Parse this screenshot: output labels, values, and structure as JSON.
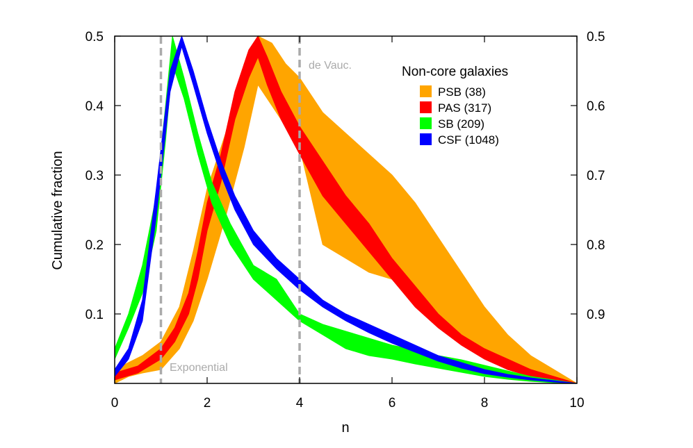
{
  "chart_data": {
    "type": "area",
    "title": "",
    "xlabel": "n",
    "ylabel": "Cumulative fraction",
    "xlim": [
      0,
      10
    ],
    "ylim": [
      0,
      0.5
    ],
    "x_ticks": [
      0,
      2,
      4,
      6,
      8,
      10
    ],
    "y_ticks": [
      0.1,
      0.2,
      0.3,
      0.4,
      0.5
    ],
    "y_tick_labels": [
      "0.1",
      "0.2",
      "0.3",
      "0.4",
      "0.5"
    ],
    "right_axis": {
      "ticks": [
        0.1,
        0.2,
        0.3,
        0.4,
        0.5
      ],
      "labels": [
        "0.9",
        "0.8",
        "0.7",
        "0.6",
        "0.5"
      ]
    },
    "grid": false,
    "legend": {
      "title": "Non-core galaxies",
      "position": "top-right"
    },
    "reference_lines": [
      {
        "x": 1,
        "label": "Exponential",
        "color": "#aaaaaa"
      },
      {
        "x": 4,
        "label": "de Vauc.",
        "color": "#aaaaaa"
      }
    ],
    "series": [
      {
        "name": "PSB (38)",
        "color": "#ffa500",
        "x": [
          0,
          0.3,
          0.6,
          1.0,
          1.4,
          1.7,
          2.0,
          2.4,
          2.8,
          3.1,
          3.4,
          3.7,
          4.0,
          4.5,
          5.0,
          5.5,
          6.0,
          6.5,
          7.0,
          7.5,
          8.0,
          8.5,
          9.0,
          9.5,
          10
        ],
        "upper": [
          0.02,
          0.03,
          0.04,
          0.06,
          0.11,
          0.19,
          0.28,
          0.36,
          0.46,
          0.5,
          0.49,
          0.46,
          0.44,
          0.39,
          0.36,
          0.33,
          0.3,
          0.26,
          0.21,
          0.16,
          0.11,
          0.07,
          0.04,
          0.02,
          0
        ],
        "lower": [
          0,
          0.01,
          0.015,
          0.02,
          0.05,
          0.09,
          0.15,
          0.24,
          0.34,
          0.43,
          0.4,
          0.37,
          0.34,
          0.2,
          0.18,
          0.16,
          0.15,
          0.12,
          0.09,
          0.06,
          0.04,
          0.02,
          0.01,
          0.005,
          0
        ]
      },
      {
        "name": "PAS (317)",
        "color": "#ff0000",
        "x": [
          0,
          0.5,
          1.0,
          1.3,
          1.6,
          1.8,
          2.0,
          2.3,
          2.6,
          2.9,
          3.1,
          3.3,
          3.6,
          4.0,
          4.5,
          5.0,
          5.5,
          6.0,
          6.5,
          7.0,
          7.5,
          8.0,
          8.5,
          9.0,
          9.5,
          10
        ],
        "upper": [
          0.015,
          0.025,
          0.05,
          0.08,
          0.13,
          0.19,
          0.26,
          0.33,
          0.42,
          0.48,
          0.5,
          0.47,
          0.42,
          0.37,
          0.32,
          0.27,
          0.23,
          0.18,
          0.14,
          0.1,
          0.07,
          0.05,
          0.035,
          0.02,
          0.01,
          0
        ],
        "lower": [
          0.005,
          0.015,
          0.035,
          0.06,
          0.1,
          0.15,
          0.22,
          0.29,
          0.38,
          0.44,
          0.47,
          0.43,
          0.38,
          0.33,
          0.27,
          0.23,
          0.19,
          0.15,
          0.11,
          0.08,
          0.055,
          0.035,
          0.02,
          0.01,
          0.004,
          0
        ]
      },
      {
        "name": "SB (209)",
        "color": "#00ff00",
        "x": [
          0,
          0.3,
          0.6,
          0.9,
          1.1,
          1.25,
          1.5,
          1.8,
          2.1,
          2.5,
          3.0,
          3.5,
          4.0,
          4.5,
          5.0,
          5.5,
          6.0,
          6.5,
          7.0,
          7.5,
          8.0,
          8.5,
          9.0,
          9.5,
          10
        ],
        "upper": [
          0.05,
          0.1,
          0.17,
          0.27,
          0.4,
          0.5,
          0.44,
          0.36,
          0.29,
          0.23,
          0.17,
          0.15,
          0.1,
          0.085,
          0.075,
          0.065,
          0.055,
          0.048,
          0.04,
          0.034,
          0.026,
          0.018,
          0.01,
          0.005,
          0
        ],
        "lower": [
          0.035,
          0.08,
          0.13,
          0.22,
          0.35,
          0.46,
          0.41,
          0.33,
          0.26,
          0.2,
          0.15,
          0.12,
          0.09,
          0.07,
          0.05,
          0.04,
          0.035,
          0.028,
          0.022,
          0.016,
          0.01,
          0.006,
          0.003,
          0.001,
          0
        ]
      },
      {
        "name": "CSF (1048)",
        "color": "#0000ff",
        "x": [
          0,
          0.3,
          0.6,
          0.9,
          1.2,
          1.45,
          1.7,
          2.0,
          2.3,
          2.6,
          3.0,
          3.5,
          4.0,
          4.5,
          5.0,
          5.5,
          6.0,
          6.5,
          7.0,
          7.5,
          8.0,
          8.5,
          9.0,
          9.5,
          10
        ],
        "upper": [
          0.02,
          0.05,
          0.12,
          0.28,
          0.45,
          0.5,
          0.45,
          0.38,
          0.32,
          0.27,
          0.22,
          0.18,
          0.15,
          0.12,
          0.1,
          0.085,
          0.07,
          0.055,
          0.04,
          0.03,
          0.02,
          0.013,
          0.008,
          0.004,
          0
        ],
        "lower": [
          0.01,
          0.035,
          0.09,
          0.24,
          0.42,
          0.485,
          0.43,
          0.36,
          0.3,
          0.25,
          0.2,
          0.165,
          0.135,
          0.11,
          0.09,
          0.073,
          0.058,
          0.045,
          0.032,
          0.022,
          0.014,
          0.009,
          0.005,
          0.002,
          0
        ]
      }
    ]
  }
}
